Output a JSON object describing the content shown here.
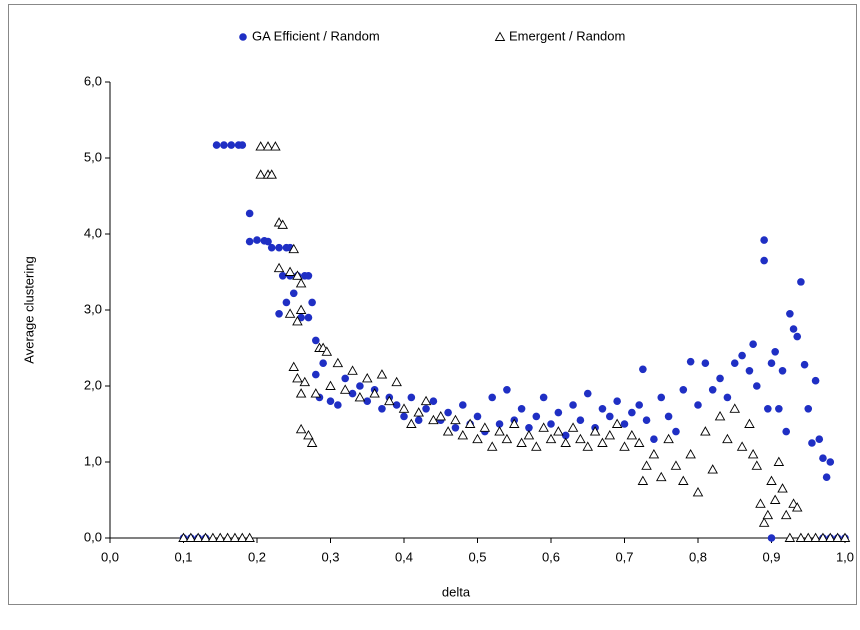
{
  "chart_data": {
    "type": "scatter",
    "xlabel": "delta",
    "ylabel": "Average clustering",
    "xlim": [
      0,
      1
    ],
    "ylim": [
      0,
      6
    ],
    "xticks": [
      {
        "value": 0,
        "label": "0,0"
      },
      {
        "value": 0.1,
        "label": "0,1"
      },
      {
        "value": 0.2,
        "label": "0,2"
      },
      {
        "value": 0.3,
        "label": "0,3"
      },
      {
        "value": 0.4,
        "label": "0,4"
      },
      {
        "value": 0.5,
        "label": "0,5"
      },
      {
        "value": 0.6,
        "label": "0,6"
      },
      {
        "value": 0.7,
        "label": "0,7"
      },
      {
        "value": 0.8,
        "label": "0,8"
      },
      {
        "value": 0.9,
        "label": "0,9"
      },
      {
        "value": 1,
        "label": "1,0"
      }
    ],
    "yticks": [
      {
        "value": 0,
        "label": "0,0"
      },
      {
        "value": 1,
        "label": "1,0"
      },
      {
        "value": 2,
        "label": "2,0"
      },
      {
        "value": 3,
        "label": "3,0"
      },
      {
        "value": 4,
        "label": "4,0"
      },
      {
        "value": 5,
        "label": "5,0"
      },
      {
        "value": 6,
        "label": "6,0"
      }
    ],
    "legend": "top",
    "series": [
      {
        "name": "GA Efficient / Random",
        "color": "#1f2fc4",
        "marker": "circle",
        "x": [
          0.1,
          0.11,
          0.12,
          0.13,
          0.145,
          0.155,
          0.165,
          0.175,
          0.18,
          0.19,
          0.19,
          0.2,
          0.21,
          0.215,
          0.22,
          0.23,
          0.24,
          0.245,
          0.235,
          0.245,
          0.255,
          0.265,
          0.27,
          0.23,
          0.24,
          0.25,
          0.26,
          0.27,
          0.275,
          0.28,
          0.28,
          0.285,
          0.29,
          0.3,
          0.31,
          0.32,
          0.33,
          0.34,
          0.35,
          0.36,
          0.37,
          0.38,
          0.39,
          0.4,
          0.41,
          0.42,
          0.43,
          0.44,
          0.45,
          0.46,
          0.47,
          0.48,
          0.49,
          0.5,
          0.51,
          0.52,
          0.53,
          0.54,
          0.55,
          0.56,
          0.57,
          0.58,
          0.59,
          0.6,
          0.61,
          0.62,
          0.63,
          0.64,
          0.65,
          0.66,
          0.67,
          0.68,
          0.69,
          0.7,
          0.71,
          0.72,
          0.725,
          0.73,
          0.74,
          0.75,
          0.76,
          0.77,
          0.78,
          0.79,
          0.8,
          0.81,
          0.82,
          0.83,
          0.84,
          0.85,
          0.86,
          0.87,
          0.875,
          0.88,
          0.89,
          0.89,
          0.895,
          0.9,
          0.905,
          0.91,
          0.915,
          0.92,
          0.925,
          0.93,
          0.935,
          0.94,
          0.945,
          0.95,
          0.955,
          0.96,
          0.965,
          0.97,
          0.975,
          0.98,
          0.97,
          0.98,
          0.99,
          1.0,
          0.9
        ],
        "values": [
          0,
          0,
          0,
          0,
          5.17,
          5.17,
          5.17,
          5.17,
          5.17,
          4.27,
          3.9,
          3.92,
          3.91,
          3.9,
          3.82,
          3.82,
          3.82,
          3.82,
          3.45,
          3.45,
          3.45,
          3.45,
          3.45,
          2.95,
          3.1,
          3.22,
          2.9,
          2.9,
          3.1,
          2.6,
          2.15,
          1.85,
          2.3,
          1.8,
          1.75,
          2.1,
          1.9,
          2.0,
          1.8,
          1.95,
          1.7,
          1.85,
          1.75,
          1.6,
          1.85,
          1.55,
          1.7,
          1.8,
          1.55,
          1.65,
          1.45,
          1.75,
          1.5,
          1.6,
          1.4,
          1.85,
          1.5,
          1.95,
          1.55,
          1.7,
          1.45,
          1.6,
          1.85,
          1.5,
          1.65,
          1.35,
          1.75,
          1.55,
          1.9,
          1.45,
          1.7,
          1.6,
          1.8,
          1.5,
          1.65,
          1.75,
          2.22,
          1.55,
          1.3,
          1.85,
          1.6,
          1.4,
          1.95,
          2.32,
          1.75,
          2.3,
          1.95,
          2.1,
          1.85,
          2.3,
          2.4,
          2.2,
          2.55,
          2.0,
          3.92,
          3.65,
          1.7,
          2.3,
          2.45,
          1.7,
          2.2,
          1.4,
          2.95,
          2.75,
          2.65,
          3.37,
          2.28,
          1.7,
          1.25,
          2.07,
          1.3,
          1.05,
          0.8,
          1.0,
          0,
          0,
          0,
          0,
          0
        ]
      },
      {
        "name": "Emergent / Random",
        "color": "#000000",
        "marker": "triangle",
        "x": [
          0.1,
          0.11,
          0.12,
          0.13,
          0.14,
          0.15,
          0.16,
          0.17,
          0.18,
          0.19,
          0.205,
          0.215,
          0.225,
          0.205,
          0.215,
          0.22,
          0.23,
          0.235,
          0.23,
          0.245,
          0.25,
          0.255,
          0.26,
          0.245,
          0.255,
          0.26,
          0.25,
          0.255,
          0.26,
          0.265,
          0.26,
          0.27,
          0.275,
          0.28,
          0.285,
          0.29,
          0.295,
          0.3,
          0.31,
          0.32,
          0.33,
          0.34,
          0.35,
          0.36,
          0.37,
          0.38,
          0.39,
          0.4,
          0.41,
          0.42,
          0.43,
          0.44,
          0.45,
          0.46,
          0.47,
          0.48,
          0.49,
          0.5,
          0.51,
          0.52,
          0.53,
          0.54,
          0.55,
          0.56,
          0.57,
          0.58,
          0.59,
          0.6,
          0.61,
          0.62,
          0.63,
          0.64,
          0.65,
          0.66,
          0.67,
          0.68,
          0.69,
          0.7,
          0.71,
          0.72,
          0.725,
          0.73,
          0.74,
          0.75,
          0.76,
          0.77,
          0.78,
          0.79,
          0.8,
          0.81,
          0.82,
          0.83,
          0.84,
          0.85,
          0.86,
          0.87,
          0.875,
          0.88,
          0.885,
          0.89,
          0.895,
          0.9,
          0.905,
          0.91,
          0.915,
          0.92,
          0.925,
          0.93,
          0.935,
          0.94,
          0.95,
          0.96,
          0.97,
          0.98,
          0.99,
          1.0
        ],
        "values": [
          0,
          0,
          0,
          0,
          0,
          0,
          0,
          0,
          0,
          0,
          5.15,
          5.15,
          5.15,
          4.78,
          4.78,
          4.78,
          4.15,
          4.12,
          3.55,
          3.5,
          3.8,
          3.45,
          3.35,
          2.95,
          2.85,
          3.0,
          2.25,
          2.1,
          1.9,
          2.05,
          1.43,
          1.35,
          1.25,
          1.9,
          2.5,
          2.5,
          2.45,
          2.0,
          2.3,
          1.95,
          2.2,
          1.85,
          2.1,
          1.9,
          2.15,
          1.8,
          2.05,
          1.7,
          1.5,
          1.65,
          1.8,
          1.55,
          1.6,
          1.4,
          1.55,
          1.35,
          1.5,
          1.3,
          1.45,
          1.2,
          1.4,
          1.3,
          1.5,
          1.25,
          1.35,
          1.2,
          1.45,
          1.3,
          1.4,
          1.25,
          1.45,
          1.3,
          1.2,
          1.4,
          1.25,
          1.35,
          1.5,
          1.2,
          1.35,
          1.25,
          0.75,
          0.95,
          1.1,
          0.8,
          1.3,
          0.95,
          0.75,
          1.1,
          0.6,
          1.4,
          0.9,
          1.6,
          1.3,
          1.7,
          1.2,
          1.5,
          1.1,
          0.95,
          0.45,
          0.2,
          0.3,
          0.75,
          0.5,
          1.0,
          0.65,
          0.3,
          0,
          0.45,
          0.4,
          0,
          0,
          0,
          0,
          0,
          0,
          0
        ]
      }
    ]
  }
}
